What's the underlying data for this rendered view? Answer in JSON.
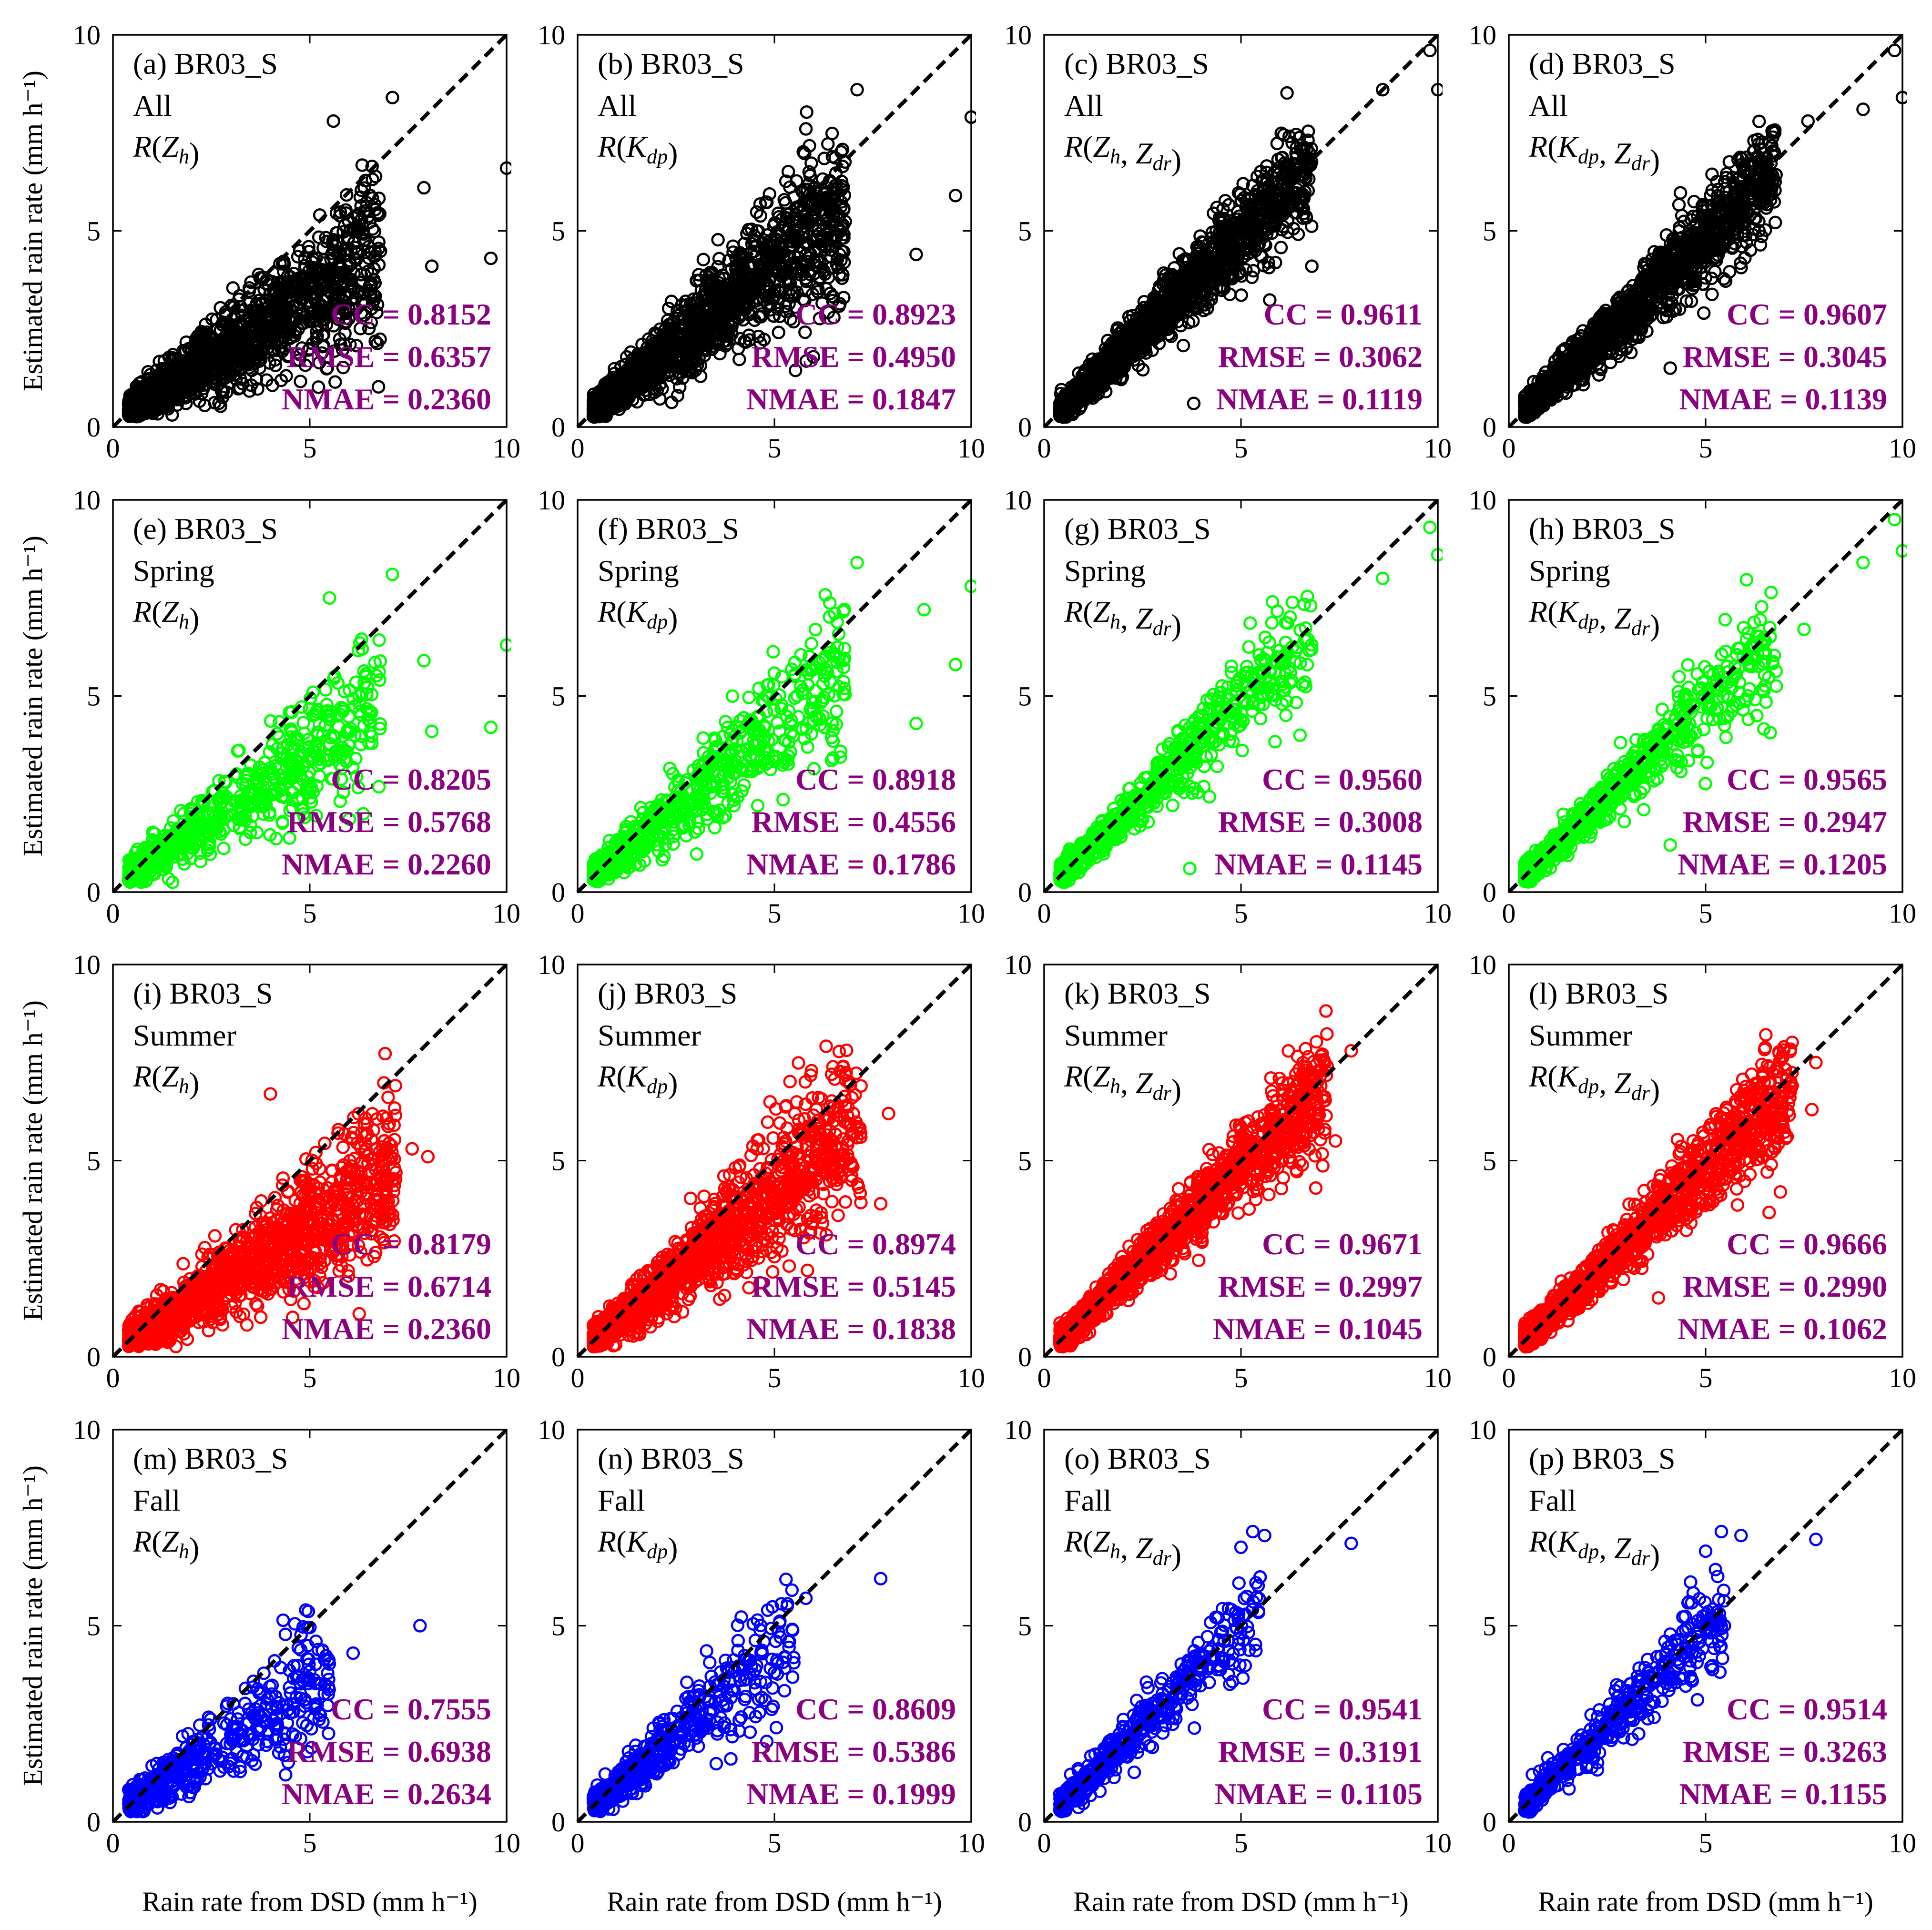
{
  "colors": {
    "All": "#000000",
    "Spring": "#00ff00",
    "Summer": "#ff0000",
    "Fall": "#0000ff",
    "stats": "#8b0080"
  },
  "chart_data": {
    "type": "scatter",
    "layout": "4x4 grid",
    "site": "BR03_S",
    "xlabel": "Rain rate from DSD (mm h⁻¹)",
    "ylabel": "Estimated rain rate (mm h⁻¹)",
    "xlim": [
      0,
      10
    ],
    "ylim": [
      0,
      10
    ],
    "xticks": [
      "0",
      "5",
      "10"
    ],
    "yticks": [
      "0",
      "5",
      "10"
    ],
    "reference_line": "1:1 dashed",
    "panels": [
      {
        "label": "(a)",
        "site": "BR03_S",
        "season": "All",
        "estimator": "R(Zh)",
        "cc": "0.8152",
        "rmse": "0.6357",
        "nmae": "0.2360",
        "bias_slope": 0.62,
        "spread": 0.34,
        "n": 1500,
        "outliers": [
          [
            10.0,
            6.6
          ],
          [
            9.6,
            4.3
          ],
          [
            8.1,
            4.1
          ],
          [
            7.9,
            6.1
          ],
          [
            7.1,
            8.4
          ],
          [
            5.6,
            7.8
          ]
        ]
      },
      {
        "label": "(b)",
        "site": "BR03_S",
        "season": "All",
        "estimator": "R(Kdp)",
        "cc": "0.8923",
        "rmse": "0.4950",
        "nmae": "0.1847",
        "bias_slope": 0.8,
        "spread": 0.28,
        "n": 1500,
        "outliers": [
          [
            10.0,
            7.9
          ],
          [
            9.6,
            5.9
          ],
          [
            8.6,
            4.4
          ],
          [
            7.1,
            8.6
          ],
          [
            5.8,
            7.6
          ]
        ]
      },
      {
        "label": "(c)",
        "site": "BR03_S",
        "season": "All",
        "estimator": "R(Zh, Zdr)",
        "cc": "0.9611",
        "rmse": "0.3062",
        "nmae": "0.1119",
        "bias_slope": 0.97,
        "spread": 0.16,
        "n": 1500,
        "outliers": [
          [
            10.0,
            8.6
          ],
          [
            9.8,
            9.6
          ],
          [
            8.6,
            8.6
          ],
          [
            6.8,
            4.1
          ],
          [
            3.8,
            0.6
          ]
        ]
      },
      {
        "label": "(d)",
        "site": "BR03_S",
        "season": "All",
        "estimator": "R(Kdp, Zdr)",
        "cc": "0.9607",
        "rmse": "0.3045",
        "nmae": "0.1139",
        "bias_slope": 0.96,
        "spread": 0.16,
        "n": 1500,
        "outliers": [
          [
            10.0,
            8.4
          ],
          [
            9.8,
            9.6
          ],
          [
            9.0,
            8.1
          ],
          [
            7.6,
            7.8
          ],
          [
            4.1,
            1.5
          ]
        ]
      },
      {
        "label": "(e)",
        "site": "BR03_S",
        "season": "Spring",
        "estimator": "R(Zh)",
        "cc": "0.8205",
        "rmse": "0.5768",
        "nmae": "0.2260",
        "bias_slope": 0.66,
        "spread": 0.32,
        "n": 650,
        "outliers": [
          [
            10.0,
            6.3
          ],
          [
            9.6,
            4.2
          ],
          [
            8.1,
            4.1
          ],
          [
            7.9,
            5.9
          ],
          [
            7.1,
            8.1
          ],
          [
            5.5,
            7.5
          ]
        ]
      },
      {
        "label": "(f)",
        "site": "BR03_S",
        "season": "Spring",
        "estimator": "R(Kdp)",
        "cc": "0.8918",
        "rmse": "0.4556",
        "nmae": "0.1786",
        "bias_slope": 0.82,
        "spread": 0.27,
        "n": 650,
        "outliers": [
          [
            10.0,
            7.8
          ],
          [
            9.6,
            5.8
          ],
          [
            8.6,
            4.3
          ],
          [
            7.1,
            8.4
          ],
          [
            8.8,
            7.2
          ]
        ]
      },
      {
        "label": "(g)",
        "site": "BR03_S",
        "season": "Spring",
        "estimator": "R(Zh, Zdr)",
        "cc": "0.9560",
        "rmse": "0.3008",
        "nmae": "0.1145",
        "bias_slope": 0.97,
        "spread": 0.16,
        "n": 650,
        "outliers": [
          [
            10.0,
            8.6
          ],
          [
            9.8,
            9.3
          ],
          [
            8.6,
            8.0
          ],
          [
            5.8,
            7.4
          ],
          [
            6.5,
            4.0
          ],
          [
            3.7,
            0.6
          ]
        ]
      },
      {
        "label": "(h)",
        "site": "BR03_S",
        "season": "Spring",
        "estimator": "R(Kdp, Zdr)",
        "cc": "0.9565",
        "rmse": "0.2947",
        "nmae": "0.1205",
        "bias_slope": 0.96,
        "spread": 0.17,
        "n": 650,
        "outliers": [
          [
            10.0,
            8.7
          ],
          [
            9.8,
            9.5
          ],
          [
            9.0,
            8.4
          ],
          [
            7.5,
            6.7
          ],
          [
            4.1,
            1.2
          ]
        ]
      },
      {
        "label": "(i)",
        "site": "BR03_S",
        "season": "Summer",
        "estimator": "R(Zh)",
        "cc": "0.8179",
        "rmse": "0.6714",
        "nmae": "0.2360",
        "bias_slope": 0.62,
        "spread": 0.34,
        "n": 1400,
        "outliers": [
          [
            8.0,
            5.1
          ],
          [
            7.6,
            5.3
          ],
          [
            4.0,
            6.7
          ]
        ]
      },
      {
        "label": "(j)",
        "site": "BR03_S",
        "season": "Summer",
        "estimator": "R(Kdp)",
        "cc": "0.8974",
        "rmse": "0.5145",
        "nmae": "0.1838",
        "bias_slope": 0.82,
        "spread": 0.27,
        "n": 1400,
        "outliers": [
          [
            7.9,
            6.2
          ],
          [
            7.7,
            3.9
          ],
          [
            5.3,
            6.4
          ]
        ]
      },
      {
        "label": "(k)",
        "site": "BR03_S",
        "season": "Summer",
        "estimator": "R(Zh, Zdr)",
        "cc": "0.9671",
        "rmse": "0.2997",
        "nmae": "0.1045",
        "bias_slope": 0.97,
        "spread": 0.15,
        "n": 1400,
        "outliers": [
          [
            7.8,
            7.8
          ],
          [
            7.4,
            5.5
          ],
          [
            6.9,
            4.3
          ]
        ]
      },
      {
        "label": "(l)",
        "site": "BR03_S",
        "season": "Summer",
        "estimator": "R(Kdp, Zdr)",
        "cc": "0.9666",
        "rmse": "0.2990",
        "nmae": "0.1062",
        "bias_slope": 0.96,
        "spread": 0.15,
        "n": 1400,
        "outliers": [
          [
            7.8,
            7.5
          ],
          [
            7.7,
            6.3
          ],
          [
            6.9,
            4.2
          ],
          [
            3.8,
            1.5
          ]
        ]
      },
      {
        "label": "(m)",
        "site": "BR03_S",
        "season": "Fall",
        "estimator": "R(Zh)",
        "cc": "0.7555",
        "rmse": "0.6938",
        "nmae": "0.2634",
        "bias_slope": 0.66,
        "spread": 0.34,
        "n": 500,
        "outliers": [
          [
            7.8,
            5.0
          ],
          [
            6.1,
            4.3
          ],
          [
            4.9,
            5.4
          ]
        ]
      },
      {
        "label": "(n)",
        "site": "BR03_S",
        "season": "Fall",
        "estimator": "R(Kdp)",
        "cc": "0.8609",
        "rmse": "0.5386",
        "nmae": "0.1999",
        "bias_slope": 0.84,
        "spread": 0.28,
        "n": 500,
        "outliers": [
          [
            7.7,
            6.2
          ],
          [
            5.8,
            5.7
          ]
        ]
      },
      {
        "label": "(o)",
        "site": "BR03_S",
        "season": "Fall",
        "estimator": "R(Zh, Zdr)",
        "cc": "0.9541",
        "rmse": "0.3191",
        "nmae": "0.1105",
        "bias_slope": 0.98,
        "spread": 0.16,
        "n": 500,
        "outliers": [
          [
            7.8,
            7.1
          ],
          [
            5.6,
            7.3
          ],
          [
            5.3,
            7.4
          ],
          [
            5.0,
            7.0
          ]
        ]
      },
      {
        "label": "(p)",
        "site": "BR03_S",
        "season": "Fall",
        "estimator": "R(Kdp, Zdr)",
        "cc": "0.9514",
        "rmse": "0.3263",
        "nmae": "0.1155",
        "bias_slope": 0.97,
        "spread": 0.17,
        "n": 500,
        "outliers": [
          [
            7.8,
            7.2
          ],
          [
            5.9,
            7.3
          ],
          [
            5.4,
            7.4
          ],
          [
            5.0,
            6.9
          ]
        ]
      }
    ]
  }
}
